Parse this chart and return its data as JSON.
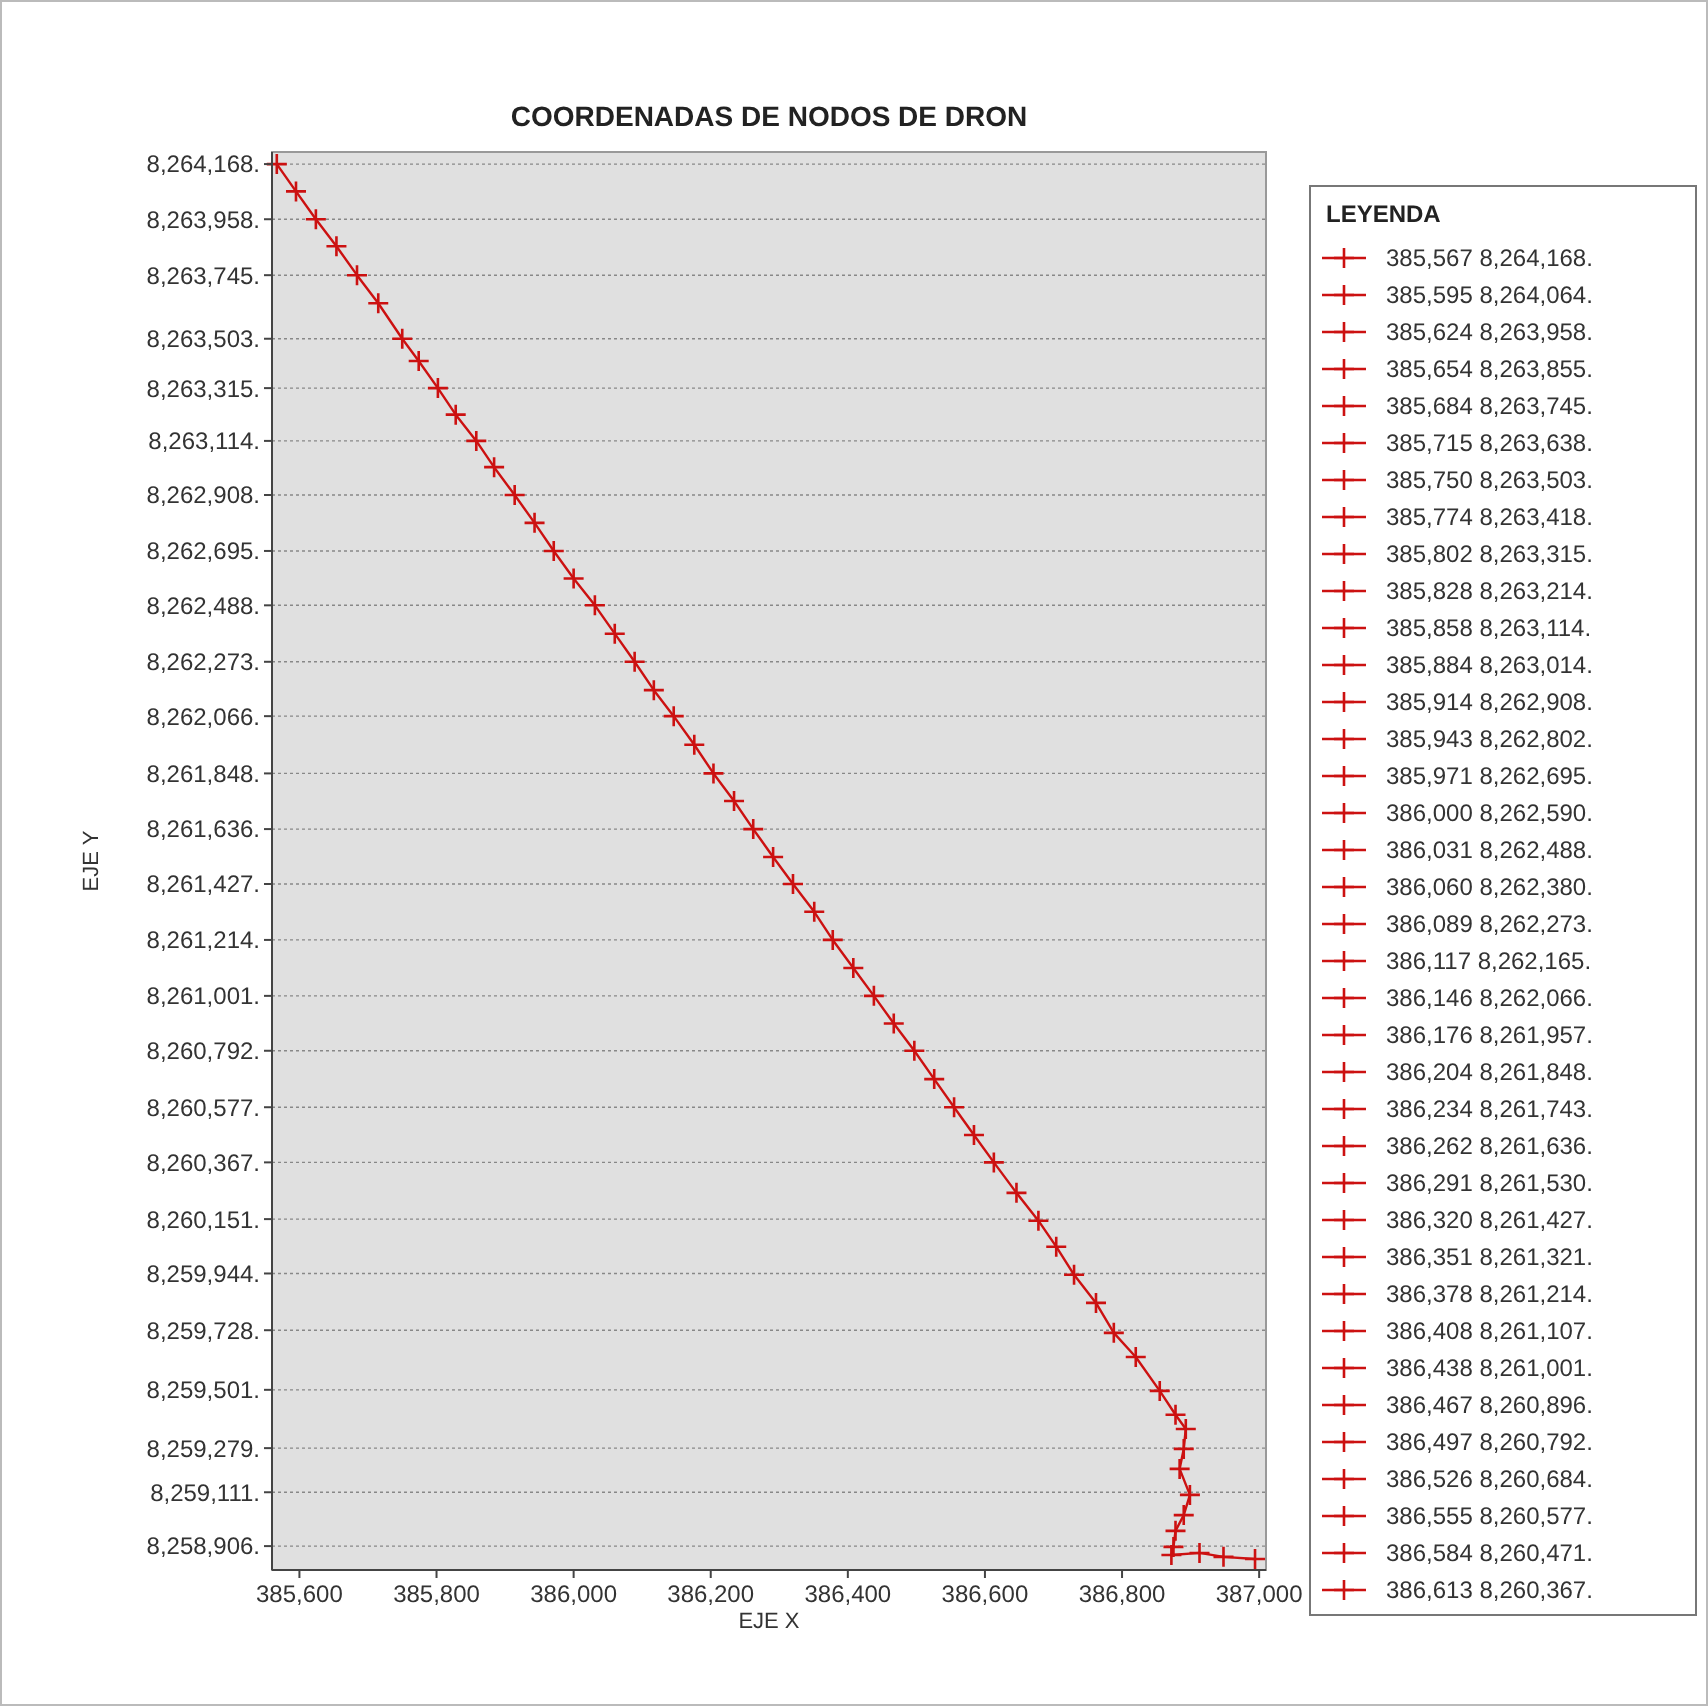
{
  "chart_data": {
    "type": "line",
    "title": "COORDENADAS DE NODOS DE DRON",
    "xlabel": "EJE X",
    "ylabel": "EJE Y",
    "legend_title": "LEYENDA",
    "legend": "right",
    "grid": "y",
    "marker": "cross",
    "xlim": [
      385560,
      387010
    ],
    "ylim": [
      8258815,
      8264214
    ],
    "xticks": [
      {
        "value": 385600,
        "label": "385,600"
      },
      {
        "value": 385800,
        "label": "385,800"
      },
      {
        "value": 386000,
        "label": "386,000"
      },
      {
        "value": 386200,
        "label": "386,200"
      },
      {
        "value": 386400,
        "label": "386,400"
      },
      {
        "value": 386600,
        "label": "386,600"
      },
      {
        "value": 386800,
        "label": "386,800"
      },
      {
        "value": 387000,
        "label": "387,000"
      }
    ],
    "yticks": [
      {
        "value": 8264168,
        "label": "8,264,168."
      },
      {
        "value": 8263958,
        "label": "8,263,958."
      },
      {
        "value": 8263745,
        "label": "8,263,745."
      },
      {
        "value": 8263503,
        "label": "8,263,503."
      },
      {
        "value": 8263315,
        "label": "8,263,315."
      },
      {
        "value": 8263114,
        "label": "8,263,114."
      },
      {
        "value": 8262908,
        "label": "8,262,908."
      },
      {
        "value": 8262695,
        "label": "8,262,695."
      },
      {
        "value": 8262488,
        "label": "8,262,488."
      },
      {
        "value": 8262273,
        "label": "8,262,273."
      },
      {
        "value": 8262066,
        "label": "8,262,066."
      },
      {
        "value": 8261848,
        "label": "8,261,848."
      },
      {
        "value": 8261636,
        "label": "8,261,636."
      },
      {
        "value": 8261427,
        "label": "8,261,427."
      },
      {
        "value": 8261214,
        "label": "8,261,214."
      },
      {
        "value": 8261001,
        "label": "8,261,001."
      },
      {
        "value": 8260792,
        "label": "8,260,792."
      },
      {
        "value": 8260577,
        "label": "8,260,577."
      },
      {
        "value": 8260367,
        "label": "8,260,367."
      },
      {
        "value": 8260151,
        "label": "8,260,151."
      },
      {
        "value": 8259944,
        "label": "8,259,944."
      },
      {
        "value": 8259728,
        "label": "8,259,728."
      },
      {
        "value": 8259501,
        "label": "8,259,501."
      },
      {
        "value": 8259279,
        "label": "8,259,279."
      },
      {
        "value": 8259111,
        "label": "8,259,111."
      },
      {
        "value": 8258906,
        "label": "8,258,906."
      }
    ],
    "series": [
      {
        "marker": "none",
        "color": "#cc1111",
        "x": [
          385567,
          385595,
          385624,
          385654,
          385684,
          385715,
          385750,
          385774,
          385802,
          385828,
          385858,
          385884,
          385914,
          385943,
          385971,
          386000,
          386031,
          386060,
          386089,
          386117,
          386146,
          386176,
          386204,
          386234,
          386262,
          386291,
          386320,
          386351,
          386378,
          386408,
          386438,
          386467,
          386497,
          386526,
          386555,
          386584,
          386613,
          386646,
          386678,
          386704,
          386730,
          386762,
          386788,
          386820,
          386855,
          386878,
          386893,
          386890,
          386884,
          386899,
          386890,
          386878,
          386875,
          386872,
          386913,
          386948,
          386994
        ],
        "values": [
          8264168,
          8264064,
          8263958,
          8263855,
          8263745,
          8263638,
          8263503,
          8263418,
          8263315,
          8263214,
          8263114,
          8263014,
          8262908,
          8262802,
          8262695,
          8262590,
          8262488,
          8262380,
          8262273,
          8262165,
          8262066,
          8261957,
          8261848,
          8261743,
          8261636,
          8261530,
          8261427,
          8261321,
          8261214,
          8261107,
          8261001,
          8260896,
          8260792,
          8260684,
          8260577,
          8260471,
          8260367,
          8260251,
          8260145,
          8260046,
          8259939,
          8259832,
          8259718,
          8259626,
          8259497,
          8259406,
          8259352,
          8259276,
          8259200,
          8259101,
          8259024,
          8258964,
          8258903,
          8258872,
          8258880,
          8258865,
          8258857
        ]
      },
      {
        "type": "scatter",
        "color": "#cc1111",
        "x": [
          386646,
          386678,
          386704,
          386730,
          386762,
          386788,
          386820,
          386855,
          386878,
          386893,
          386890,
          386884,
          386899,
          386890,
          386878,
          386875,
          386872,
          386913,
          386948,
          386994
        ],
        "values": [
          8260251,
          8260145,
          8260046,
          8259939,
          8259832,
          8259718,
          8259626,
          8259497,
          8259406,
          8259352,
          8259276,
          8259200,
          8259101,
          8259024,
          8258964,
          8258903,
          8258872,
          8258880,
          8258865,
          8258857
        ]
      },
      {
        "type": "scatter",
        "name": "385,567 8,264,168.",
        "color": "#cc1111",
        "x": [
          385567
        ],
        "values": [
          8264168
        ]
      },
      {
        "type": "scatter",
        "name": "385,595 8,264,064.",
        "color": "#cc1111",
        "x": [
          385595
        ],
        "values": [
          8264064
        ]
      },
      {
        "type": "scatter",
        "name": "385,624 8,263,958.",
        "color": "#cc1111",
        "x": [
          385624
        ],
        "values": [
          8263958
        ]
      },
      {
        "type": "scatter",
        "name": "385,654 8,263,855.",
        "color": "#cc1111",
        "x": [
          385654
        ],
        "values": [
          8263855
        ]
      },
      {
        "type": "scatter",
        "name": "385,684 8,263,745.",
        "color": "#cc1111",
        "x": [
          385684
        ],
        "values": [
          8263745
        ]
      },
      {
        "type": "scatter",
        "name": "385,715 8,263,638.",
        "color": "#cc1111",
        "x": [
          385715
        ],
        "values": [
          8263638
        ]
      },
      {
        "type": "scatter",
        "name": "385,750 8,263,503.",
        "color": "#cc1111",
        "x": [
          385750
        ],
        "values": [
          8263503
        ]
      },
      {
        "type": "scatter",
        "name": "385,774 8,263,418.",
        "color": "#cc1111",
        "x": [
          385774
        ],
        "values": [
          8263418
        ]
      },
      {
        "type": "scatter",
        "name": "385,802 8,263,315.",
        "color": "#cc1111",
        "x": [
          385802
        ],
        "values": [
          8263315
        ]
      },
      {
        "type": "scatter",
        "name": "385,828 8,263,214.",
        "color": "#cc1111",
        "x": [
          385828
        ],
        "values": [
          8263214
        ]
      },
      {
        "type": "scatter",
        "name": "385,858 8,263,114.",
        "color": "#cc1111",
        "x": [
          385858
        ],
        "values": [
          8263114
        ]
      },
      {
        "type": "scatter",
        "name": "385,884 8,263,014.",
        "color": "#cc1111",
        "x": [
          385884
        ],
        "values": [
          8263014
        ]
      },
      {
        "type": "scatter",
        "name": "385,914 8,262,908.",
        "color": "#cc1111",
        "x": [
          385914
        ],
        "values": [
          8262908
        ]
      },
      {
        "type": "scatter",
        "name": "385,943 8,262,802.",
        "color": "#cc1111",
        "x": [
          385943
        ],
        "values": [
          8262802
        ]
      },
      {
        "type": "scatter",
        "name": "385,971 8,262,695.",
        "color": "#cc1111",
        "x": [
          385971
        ],
        "values": [
          8262695
        ]
      },
      {
        "type": "scatter",
        "name": "386,000 8,262,590.",
        "color": "#cc1111",
        "x": [
          386000
        ],
        "values": [
          8262590
        ]
      },
      {
        "type": "scatter",
        "name": "386,031 8,262,488.",
        "color": "#cc1111",
        "x": [
          386031
        ],
        "values": [
          8262488
        ]
      },
      {
        "type": "scatter",
        "name": "386,060 8,262,380.",
        "color": "#cc1111",
        "x": [
          386060
        ],
        "values": [
          8262380
        ]
      },
      {
        "type": "scatter",
        "name": "386,089 8,262,273.",
        "color": "#cc1111",
        "x": [
          386089
        ],
        "values": [
          8262273
        ]
      },
      {
        "type": "scatter",
        "name": "386,117 8,262,165.",
        "color": "#cc1111",
        "x": [
          386117
        ],
        "values": [
          8262165
        ]
      },
      {
        "type": "scatter",
        "name": "386,146 8,262,066.",
        "color": "#cc1111",
        "x": [
          386146
        ],
        "values": [
          8262066
        ]
      },
      {
        "type": "scatter",
        "name": "386,176 8,261,957.",
        "color": "#cc1111",
        "x": [
          386176
        ],
        "values": [
          8261957
        ]
      },
      {
        "type": "scatter",
        "name": "386,204 8,261,848.",
        "color": "#cc1111",
        "x": [
          386204
        ],
        "values": [
          8261848
        ]
      },
      {
        "type": "scatter",
        "name": "386,234 8,261,743.",
        "color": "#cc1111",
        "x": [
          386234
        ],
        "values": [
          8261743
        ]
      },
      {
        "type": "scatter",
        "name": "386,262 8,261,636.",
        "color": "#cc1111",
        "x": [
          386262
        ],
        "values": [
          8261636
        ]
      },
      {
        "type": "scatter",
        "name": "386,291 8,261,530.",
        "color": "#cc1111",
        "x": [
          386291
        ],
        "values": [
          8261530
        ]
      },
      {
        "type": "scatter",
        "name": "386,320 8,261,427.",
        "color": "#cc1111",
        "x": [
          386320
        ],
        "values": [
          8261427
        ]
      },
      {
        "type": "scatter",
        "name": "386,351 8,261,321.",
        "color": "#cc1111",
        "x": [
          386351
        ],
        "values": [
          8261321
        ]
      },
      {
        "type": "scatter",
        "name": "386,378 8,261,214.",
        "color": "#cc1111",
        "x": [
          386378
        ],
        "values": [
          8261214
        ]
      },
      {
        "type": "scatter",
        "name": "386,408 8,261,107.",
        "color": "#cc1111",
        "x": [
          386408
        ],
        "values": [
          8261107
        ]
      },
      {
        "type": "scatter",
        "name": "386,438 8,261,001.",
        "color": "#cc1111",
        "x": [
          386438
        ],
        "values": [
          8261001
        ]
      },
      {
        "type": "scatter",
        "name": "386,467 8,260,896.",
        "color": "#cc1111",
        "x": [
          386467
        ],
        "values": [
          8260896
        ]
      },
      {
        "type": "scatter",
        "name": "386,497 8,260,792.",
        "color": "#cc1111",
        "x": [
          386497
        ],
        "values": [
          8260792
        ]
      },
      {
        "type": "scatter",
        "name": "386,526 8,260,684.",
        "color": "#cc1111",
        "x": [
          386526
        ],
        "values": [
          8260684
        ]
      },
      {
        "type": "scatter",
        "name": "386,555 8,260,577.",
        "color": "#cc1111",
        "x": [
          386555
        ],
        "values": [
          8260577
        ]
      },
      {
        "type": "scatter",
        "name": "386,584 8,260,471.",
        "color": "#cc1111",
        "x": [
          386584
        ],
        "values": [
          8260471
        ]
      },
      {
        "type": "scatter",
        "name": "386,613 8,260,367.",
        "color": "#cc1111",
        "x": [
          386613
        ],
        "values": [
          8260367
        ]
      }
    ]
  }
}
